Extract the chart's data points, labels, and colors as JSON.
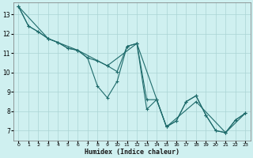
{
  "title": "",
  "xlabel": "Humidex (Indice chaleur)",
  "ylabel": "",
  "background_color": "#cff0f0",
  "grid_color": "#aad4d4",
  "line_color": "#1e6b6b",
  "marker_color": "#1e6b6b",
  "xlim": [
    -0.5,
    23.5
  ],
  "ylim": [
    6.5,
    13.6
  ],
  "xticks": [
    0,
    1,
    2,
    3,
    4,
    5,
    6,
    7,
    8,
    9,
    10,
    11,
    12,
    13,
    14,
    15,
    16,
    17,
    18,
    19,
    20,
    21,
    22,
    23
  ],
  "yticks": [
    7,
    8,
    9,
    10,
    11,
    12,
    13
  ],
  "series1": [
    [
      0,
      13.4
    ],
    [
      1,
      12.4
    ],
    [
      2,
      12.1
    ],
    [
      3,
      11.75
    ],
    [
      4,
      11.55
    ],
    [
      5,
      11.25
    ],
    [
      6,
      11.15
    ],
    [
      7,
      10.75
    ],
    [
      8,
      9.3
    ],
    [
      9,
      8.7
    ],
    [
      10,
      9.55
    ],
    [
      11,
      11.35
    ],
    [
      12,
      11.5
    ],
    [
      13,
      8.1
    ],
    [
      14,
      8.6
    ],
    [
      15,
      7.2
    ],
    [
      16,
      7.5
    ],
    [
      17,
      8.5
    ],
    [
      18,
      8.8
    ],
    [
      19,
      7.8
    ],
    [
      20,
      7.0
    ],
    [
      21,
      6.9
    ],
    [
      22,
      7.55
    ],
    [
      23,
      7.9
    ]
  ],
  "series2": [
    [
      0,
      13.4
    ],
    [
      1,
      12.4
    ],
    [
      2,
      12.1
    ],
    [
      3,
      11.75
    ],
    [
      4,
      11.55
    ],
    [
      5,
      11.25
    ],
    [
      6,
      11.15
    ],
    [
      7,
      10.75
    ],
    [
      8,
      10.6
    ],
    [
      9,
      10.35
    ],
    [
      10,
      10.05
    ],
    [
      11,
      11.35
    ],
    [
      12,
      11.5
    ],
    [
      13,
      8.6
    ],
    [
      14,
      8.6
    ],
    [
      15,
      7.2
    ],
    [
      16,
      7.5
    ],
    [
      17,
      8.5
    ],
    [
      18,
      8.8
    ],
    [
      19,
      7.8
    ],
    [
      20,
      7.0
    ],
    [
      21,
      6.9
    ],
    [
      22,
      7.55
    ],
    [
      23,
      7.9
    ]
  ],
  "series3": [
    [
      0,
      13.4
    ],
    [
      3,
      11.75
    ],
    [
      6,
      11.15
    ],
    [
      9,
      10.35
    ],
    [
      12,
      11.5
    ],
    [
      15,
      7.2
    ],
    [
      18,
      8.5
    ],
    [
      21,
      6.9
    ],
    [
      23,
      7.9
    ]
  ]
}
